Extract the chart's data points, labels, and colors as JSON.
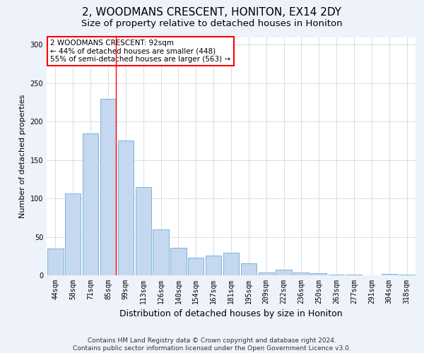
{
  "title": "2, WOODMANS CRESCENT, HONITON, EX14 2DY",
  "subtitle": "Size of property relative to detached houses in Honiton",
  "xlabel": "Distribution of detached houses by size in Honiton",
  "ylabel": "Number of detached properties",
  "categories": [
    "44sqm",
    "58sqm",
    "71sqm",
    "85sqm",
    "99sqm",
    "113sqm",
    "126sqm",
    "140sqm",
    "154sqm",
    "167sqm",
    "181sqm",
    "195sqm",
    "209sqm",
    "222sqm",
    "236sqm",
    "250sqm",
    "263sqm",
    "277sqm",
    "291sqm",
    "304sqm",
    "318sqm"
  ],
  "values": [
    35,
    107,
    185,
    230,
    175,
    115,
    60,
    36,
    23,
    26,
    29,
    16,
    4,
    7,
    4,
    3,
    1,
    1,
    0,
    2,
    1
  ],
  "bar_color": "#c5d8f0",
  "bar_edge_color": "#6aaad4",
  "vline_color": "red",
  "vline_x": 3.45,
  "annotation_text": "2 WOODMANS CRESCENT: 92sqm\n← 44% of detached houses are smaller (448)\n55% of semi-detached houses are larger (563) →",
  "annotation_box_color": "white",
  "annotation_box_edge_color": "red",
  "ylim": [
    0,
    310
  ],
  "yticks": [
    0,
    50,
    100,
    150,
    200,
    250,
    300
  ],
  "footer": "Contains HM Land Registry data © Crown copyright and database right 2024.\nContains public sector information licensed under the Open Government Licence v3.0.",
  "background_color": "#eef2fb",
  "plot_bg_color": "#ffffff",
  "title_fontsize": 11,
  "subtitle_fontsize": 9.5,
  "xlabel_fontsize": 9,
  "ylabel_fontsize": 8,
  "tick_fontsize": 7,
  "footer_fontsize": 6.5,
  "annotation_fontsize": 7.5
}
